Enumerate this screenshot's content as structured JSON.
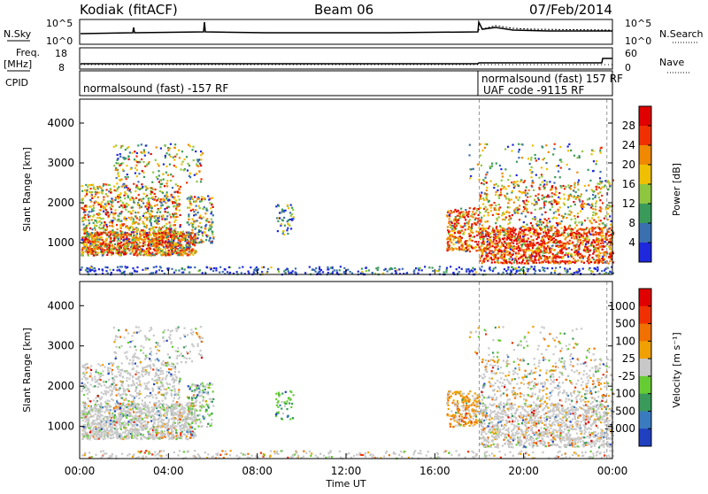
{
  "header": {
    "station": "Kodiak (fitACF)",
    "beam": "Beam 06",
    "date": "07/Feb/2014"
  },
  "top_panels": {
    "nsky_label": "N.Sky",
    "nsky_ticks": [
      "10^5",
      "10^0"
    ],
    "nsearch_label": "N.Search",
    "nsearch_ticks": [
      "10^5",
      "10^0"
    ],
    "freq_label": "Freq.",
    "freq_unit": "[MHz]",
    "freq_ticks": [
      "18",
      "8"
    ],
    "nave_label": "Nave",
    "nave_ticks": [
      "60",
      "0"
    ],
    "cpid_label": "CPID",
    "cpid_segments": [
      "normalsound (fast) -157 RF",
      "normalsound (fast) 157 RF",
      "UAF code -9115 RF"
    ]
  },
  "chart_data": [
    {
      "type": "heatmap",
      "title": "Power",
      "ylabel": "Slant Range [km]",
      "xlabel": "",
      "ylim": [
        200,
        4600
      ],
      "xlim": [
        "00:00",
        "24:00"
      ],
      "yticks": [
        "1000",
        "2000",
        "3000",
        "4000"
      ],
      "colorbar_label": "Power [dB]",
      "colorbar_ticks": [
        "4",
        "8",
        "12",
        "16",
        "20",
        "24",
        "28"
      ],
      "colorbar_colors": [
        "#1e28dc",
        "#3a6fb0",
        "#3a9a5a",
        "#8ec63f",
        "#f0c000",
        "#f08800",
        "#f03000",
        "#e00000"
      ]
    },
    {
      "type": "heatmap",
      "title": "Velocity",
      "ylabel": "Slant Range [km]",
      "xlabel": "Time UT",
      "ylim": [
        200,
        4600
      ],
      "xlim": [
        "00:00",
        "24:00"
      ],
      "yticks": [
        "1000",
        "2000",
        "3000",
        "4000"
      ],
      "xticks": [
        "00:00",
        "04:00",
        "08:00",
        "12:00",
        "16:00",
        "20:00",
        "00:00"
      ],
      "colorbar_label": "Velocity [m s⁻¹]",
      "colorbar_ticks": [
        "1000",
        "500",
        "100",
        "25",
        "-25",
        "-100",
        "-500",
        "-1000"
      ],
      "colorbar_colors": [
        "#2040c0",
        "#3a7abf",
        "#3a9a5a",
        "#66cc33",
        "#c8c8c8",
        "#f0a000",
        "#f07000",
        "#f03000",
        "#e00000"
      ]
    }
  ]
}
